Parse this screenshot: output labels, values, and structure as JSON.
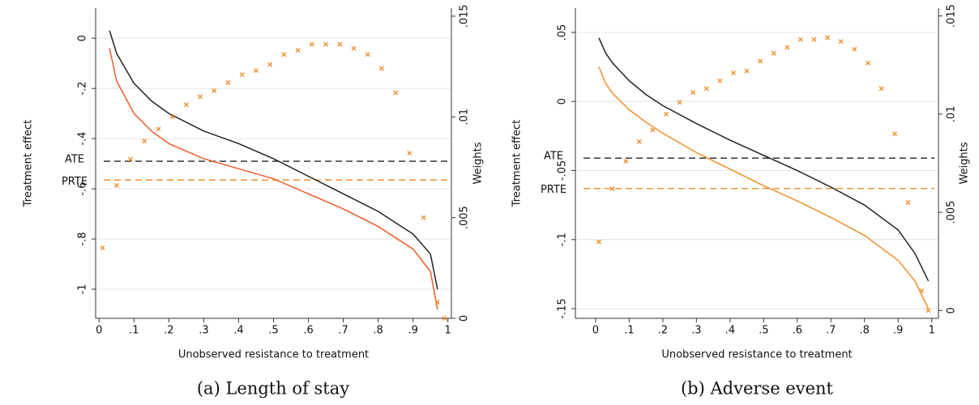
{
  "chart_data": [
    {
      "type": "line",
      "caption": "(a) Length of stay",
      "xlabel": "Unobserved resistance to treatment",
      "ylabel": "Treatment effect",
      "y2label": "Weights",
      "grid": true,
      "xlim": [
        -0.01,
        1.01
      ],
      "xticks": [
        0,
        {
          "value": 0.1,
          "label": ".1"
        },
        {
          "value": 0.2,
          "label": ".2"
        },
        {
          "value": 0.3,
          "label": ".3"
        },
        {
          "value": 0.4,
          "label": ".4"
        },
        {
          "value": 0.5,
          "label": ".5"
        },
        {
          "value": 0.6,
          "label": ".6"
        },
        {
          "value": 0.7,
          "label": ".7"
        },
        {
          "value": 0.8,
          "label": ".8"
        },
        {
          "value": 0.9,
          "label": ".9"
        },
        1
      ],
      "ylim": [
        -1.116,
        0.12
      ],
      "yticks": [
        0,
        {
          "value": -0.2,
          "label": "-.2"
        },
        {
          "value": -0.4,
          "label": "-.4"
        },
        {
          "value": -0.6,
          "label": "-.6"
        },
        {
          "value": -0.8,
          "label": "-.8"
        },
        -1
      ],
      "y2lim": [
        0,
        0.0154
      ],
      "y2ticks": [
        0,
        {
          "value": 0.005,
          "label": ".005"
        },
        {
          "value": 0.01,
          "label": ".01"
        },
        {
          "value": 0.015,
          "label": ".015"
        }
      ],
      "hlines": [
        {
          "label": "ATE",
          "value": -0.49,
          "color": "#222222"
        },
        {
          "label": "PRTE",
          "value": -0.565,
          "color": "#f28e2b"
        }
      ],
      "series": [
        {
          "kind": "line",
          "color": "#222222",
          "x": [
            0.03,
            0.05,
            0.1,
            0.15,
            0.2,
            0.3,
            0.4,
            0.5,
            0.6,
            0.7,
            0.8,
            0.9,
            0.95,
            0.97
          ],
          "values": [
            0.03,
            -0.06,
            -0.18,
            -0.25,
            -0.3,
            -0.37,
            -0.42,
            -0.48,
            -0.55,
            -0.62,
            -0.69,
            -0.78,
            -0.86,
            -1.0
          ]
        },
        {
          "kind": "line",
          "color": "#f05a28",
          "x": [
            0.03,
            0.05,
            0.1,
            0.15,
            0.2,
            0.3,
            0.4,
            0.5,
            0.6,
            0.7,
            0.8,
            0.9,
            0.95,
            0.97
          ],
          "values": [
            -0.04,
            -0.17,
            -0.3,
            -0.37,
            -0.42,
            -0.48,
            -0.52,
            -0.56,
            -0.62,
            -0.68,
            -0.75,
            -0.84,
            -0.93,
            -1.08
          ]
        },
        {
          "kind": "scatter",
          "axis": "y2",
          "color": "#f28e2b",
          "x": [
            0.01,
            0.05,
            0.09,
            0.13,
            0.17,
            0.21,
            0.25,
            0.29,
            0.33,
            0.37,
            0.41,
            0.45,
            0.49,
            0.53,
            0.57,
            0.61,
            0.65,
            0.69,
            0.73,
            0.77,
            0.81,
            0.85,
            0.89,
            0.93,
            0.97,
            0.99
          ],
          "values": [
            0.0035,
            0.0066,
            0.0079,
            0.0088,
            0.0094,
            0.01,
            0.0106,
            0.011,
            0.0113,
            0.0117,
            0.0121,
            0.0123,
            0.0126,
            0.0131,
            0.0133,
            0.0136,
            0.0136,
            0.0136,
            0.0134,
            0.0131,
            0.0124,
            0.0112,
            0.0082,
            0.005,
            0.0008,
            0
          ]
        }
      ]
    },
    {
      "type": "line",
      "caption": "(b) Adverse event",
      "xlabel": "Unobserved resistance to treatment",
      "ylabel": "Treatment effect",
      "y2label": "Weights",
      "grid": true,
      "xlim": [
        -0.06,
        1.02
      ],
      "xticks": [
        0,
        {
          "value": 0.1,
          "label": ".1"
        },
        {
          "value": 0.2,
          "label": ".2"
        },
        {
          "value": 0.3,
          "label": ".3"
        },
        {
          "value": 0.4,
          "label": ".4"
        },
        {
          "value": 0.5,
          "label": ".5"
        },
        {
          "value": 0.6,
          "label": ".6"
        },
        {
          "value": 0.7,
          "label": ".7"
        },
        {
          "value": 0.8,
          "label": ".8"
        },
        {
          "value": 0.9,
          "label": ".9"
        },
        1
      ],
      "ylim": [
        -0.157,
        0.0676
      ],
      "yticks": [
        {
          "value": 0.05,
          "label": ".05"
        },
        0,
        {
          "value": -0.05,
          "label": "-.05"
        },
        {
          "value": -0.1,
          "label": "-.1"
        },
        {
          "value": -0.15,
          "label": "-.15"
        }
      ],
      "y2lim": [
        -0.0004,
        0.0154
      ],
      "y2ticks": [
        0,
        {
          "value": 0.005,
          "label": ".005"
        },
        {
          "value": 0.01,
          "label": ".01"
        },
        {
          "value": 0.015,
          "label": ".015"
        }
      ],
      "hlines": [
        {
          "label": "ATE",
          "value": -0.041,
          "color": "#222222"
        },
        {
          "label": "PRTE",
          "value": -0.063,
          "color": "#f28e2b"
        }
      ],
      "series": [
        {
          "kind": "line",
          "color": "#222222",
          "x": [
            0.01,
            0.03,
            0.05,
            0.1,
            0.15,
            0.2,
            0.3,
            0.4,
            0.5,
            0.6,
            0.7,
            0.8,
            0.9,
            0.95,
            0.99
          ],
          "values": [
            0.046,
            0.035,
            0.028,
            0.015,
            0.005,
            -0.003,
            -0.016,
            -0.028,
            -0.039,
            -0.05,
            -0.062,
            -0.075,
            -0.093,
            -0.11,
            -0.13
          ]
        },
        {
          "kind": "line",
          "color": "#f28e2b",
          "x": [
            0.01,
            0.03,
            0.05,
            0.1,
            0.15,
            0.2,
            0.3,
            0.4,
            0.5,
            0.6,
            0.7,
            0.8,
            0.9,
            0.95,
            0.99
          ],
          "values": [
            0.025,
            0.013,
            0.006,
            -0.006,
            -0.015,
            -0.023,
            -0.037,
            -0.049,
            -0.061,
            -0.072,
            -0.084,
            -0.097,
            -0.115,
            -0.13,
            -0.15
          ]
        },
        {
          "kind": "scatter",
          "axis": "y2",
          "color": "#f28e2b",
          "x": [
            0.01,
            0.05,
            0.09,
            0.13,
            0.17,
            0.21,
            0.25,
            0.29,
            0.33,
            0.37,
            0.41,
            0.45,
            0.49,
            0.53,
            0.57,
            0.61,
            0.65,
            0.69,
            0.73,
            0.77,
            0.81,
            0.85,
            0.89,
            0.93,
            0.97,
            0.99
          ],
          "values": [
            0.0035,
            0.0062,
            0.0076,
            0.0086,
            0.0092,
            0.01,
            0.0106,
            0.0111,
            0.0113,
            0.0117,
            0.0121,
            0.0122,
            0.0127,
            0.0131,
            0.0134,
            0.0138,
            0.0138,
            0.0139,
            0.0137,
            0.0133,
            0.0126,
            0.0113,
            0.009,
            0.0055,
            0.001,
            0
          ]
        }
      ]
    }
  ]
}
